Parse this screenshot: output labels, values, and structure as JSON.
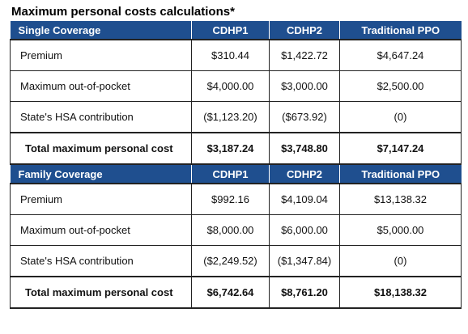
{
  "title": "Maximum personal costs calculations*",
  "colors": {
    "header_background": "#1f4f8f",
    "header_text": "#ffffff"
  },
  "single": {
    "header": [
      "Single Coverage",
      "CDHP1",
      "CDHP2",
      "Traditional PPO"
    ],
    "rows": [
      [
        "Premium",
        "$310.44",
        "$1,422.72",
        "$4,647.24"
      ],
      [
        "Maximum out-of-pocket",
        "$4,000.00",
        "$3,000.00",
        "$2,500.00"
      ],
      [
        "State's HSA contribution",
        "($1,123.20)",
        "($673.92)",
        "(0)"
      ]
    ],
    "total": [
      "Total maximum personal cost",
      "$3,187.24",
      "$3,748.80",
      "$7,147.24"
    ]
  },
  "family": {
    "header": [
      "Family Coverage",
      "CDHP1",
      "CDHP2",
      "Traditional PPO"
    ],
    "rows": [
      [
        "Premium",
        "$992.16",
        "$4,109.04",
        "$13,138.32"
      ],
      [
        "Maximum out-of-pocket",
        "$8,000.00",
        "$6,000.00",
        "$5,000.00"
      ],
      [
        "State's HSA contribution",
        "($2,249.52)",
        "($1,347.84)",
        "(0)"
      ]
    ],
    "total": [
      "Total maximum personal cost",
      "$6,742.64",
      "$8,761.20",
      "$18,138.32"
    ]
  }
}
